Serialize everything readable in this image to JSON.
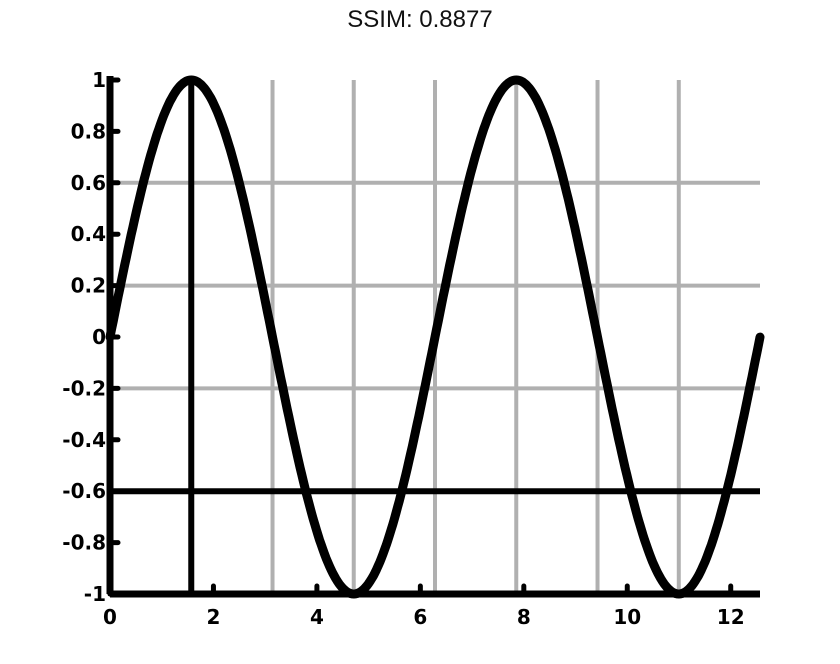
{
  "title": "SSIM: 0.8877",
  "chart_data": {
    "type": "line",
    "title": "SSIM: 0.8877",
    "xlabel": "",
    "ylabel": "",
    "xlim": [
      0,
      12.566
    ],
    "ylim": [
      -1,
      1
    ],
    "xticks": [
      0,
      2,
      4,
      6,
      8,
      10,
      12
    ],
    "xtick_labels": [
      "0",
      "2",
      "4",
      "6",
      "8",
      "10",
      "12"
    ],
    "yticks": [
      -1,
      -0.8,
      -0.6,
      -0.4,
      -0.2,
      0,
      0.2,
      0.4,
      0.6,
      0.8,
      1
    ],
    "ytick_labels": [
      "-1",
      "-0.8",
      "-0.6",
      "-0.4",
      "-0.2",
      "0",
      "0.2",
      "0.4",
      "0.6",
      "0.8",
      "1"
    ],
    "grid": true,
    "legend": "none",
    "series": [
      {
        "x": [
          0,
          0.524,
          1.047,
          1.571,
          2.094,
          2.618,
          3.142,
          3.665,
          4.189,
          4.712,
          5.236,
          5.76,
          6.283,
          6.807,
          7.33,
          7.854,
          8.378,
          8.901,
          9.425,
          9.948,
          10.472,
          10.996,
          11.519,
          12.043,
          12.566
        ],
        "y": [
          0,
          0.5,
          0.866,
          1,
          0.866,
          0.5,
          0,
          -0.5,
          -0.866,
          -1,
          -0.866,
          -0.5,
          0,
          0.5,
          0.866,
          1,
          0.866,
          0.5,
          0,
          -0.5,
          -0.866,
          -1,
          -0.866,
          -0.5,
          0
        ],
        "color": "#000000"
      }
    ],
    "grid_lines": {
      "vertical": [
        1.571,
        3.142,
        4.712,
        6.283,
        7.854,
        9.425,
        10.996
      ],
      "horizontal": [
        0.6,
        0.2,
        -0.2,
        -0.6
      ]
    },
    "colors": {
      "line": "#000000",
      "grid": "#b0b0b0",
      "axis": "#000000"
    }
  }
}
